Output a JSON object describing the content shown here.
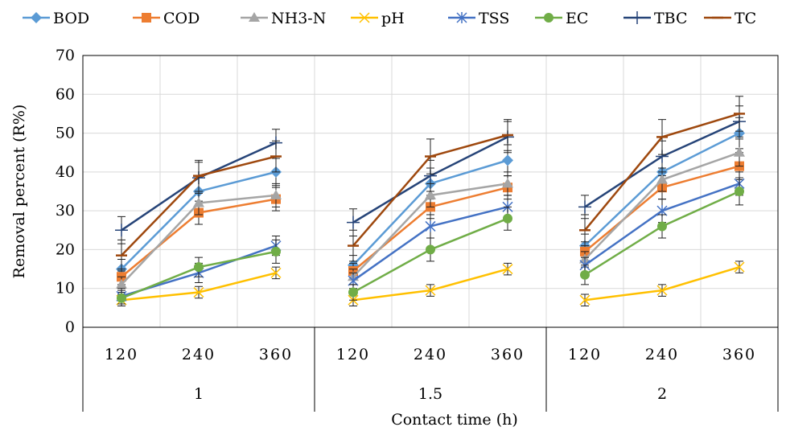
{
  "chart_data": {
    "type": "line",
    "xlabel": "Contact time (h)",
    "ylabel": "Removal  percent  (R%)",
    "ylim": [
      0,
      70
    ],
    "yticks": [
      0,
      10,
      20,
      30,
      40,
      50,
      60,
      70
    ],
    "grid": true,
    "legend_position": "top",
    "groups": [
      {
        "label": "1",
        "categories": [
          "120",
          "240",
          "360"
        ]
      },
      {
        "label": "1.5",
        "categories": [
          "120",
          "240",
          "360"
        ]
      },
      {
        "label": "2",
        "categories": [
          "120",
          "240",
          "360"
        ]
      }
    ],
    "series": [
      {
        "name": "BOD",
        "color": "#5b9bd5",
        "marker": "diamond",
        "values": [
          [
            15,
            35,
            40
          ],
          [
            16,
            37,
            43
          ],
          [
            21,
            40,
            50
          ]
        ],
        "errors": [
          [
            2.5,
            3.5,
            3.5
          ],
          [
            2.5,
            4,
            4
          ],
          [
            3,
            4,
            4
          ]
        ]
      },
      {
        "name": "COD",
        "color": "#ed7d31",
        "marker": "square",
        "values": [
          [
            13,
            29.5,
            33
          ],
          [
            14.5,
            31,
            36
          ],
          [
            19.5,
            36,
            41.5
          ]
        ],
        "errors": [
          [
            2,
            3,
            3
          ],
          [
            2,
            3,
            3
          ],
          [
            2.5,
            3,
            3.5
          ]
        ]
      },
      {
        "name": "NH3-N",
        "color": "#a5a5a5",
        "marker": "triangle",
        "values": [
          [
            11,
            32,
            34
          ],
          [
            13,
            34,
            37
          ],
          [
            17.5,
            38,
            45
          ]
        ],
        "errors": [
          [
            2,
            3,
            3
          ],
          [
            2,
            3,
            3
          ],
          [
            2,
            3,
            3.5
          ]
        ]
      },
      {
        "name": "pH",
        "color": "#ffc000",
        "marker": "x",
        "values": [
          [
            7,
            9,
            14
          ],
          [
            7,
            9.5,
            15
          ],
          [
            7,
            9.5,
            15.5
          ]
        ],
        "errors": [
          [
            1.5,
            1.5,
            1.5
          ],
          [
            1.5,
            1.5,
            1.5
          ],
          [
            1.5,
            1.5,
            1.5
          ]
        ]
      },
      {
        "name": "TSS",
        "color": "#4472c4",
        "marker": "star",
        "values": [
          [
            8,
            14,
            21
          ],
          [
            12,
            26,
            31
          ],
          [
            16,
            30,
            37
          ]
        ],
        "errors": [
          [
            2,
            2.5,
            2.5
          ],
          [
            2,
            3,
            3
          ],
          [
            2,
            3,
            3
          ]
        ]
      },
      {
        "name": "EC",
        "color": "#70ad47",
        "marker": "circle",
        "values": [
          [
            7.5,
            15.5,
            19.5
          ],
          [
            9,
            20,
            28
          ],
          [
            13.5,
            26,
            35
          ]
        ],
        "errors": [
          [
            2,
            2.5,
            3
          ],
          [
            2,
            3,
            3
          ],
          [
            2.5,
            3,
            3.5
          ]
        ]
      },
      {
        "name": "TBC",
        "color": "#264478",
        "marker": "plus",
        "values": [
          [
            25,
            38.5,
            47.5
          ],
          [
            27,
            39,
            49
          ],
          [
            31,
            44,
            53
          ]
        ],
        "errors": [
          [
            3.5,
            4,
            3.5
          ],
          [
            3.5,
            4,
            4
          ],
          [
            3,
            4,
            4
          ]
        ]
      },
      {
        "name": "TC",
        "color": "#9e480e",
        "marker": "dash",
        "values": [
          [
            18.5,
            39,
            44
          ],
          [
            21,
            44,
            49.5
          ],
          [
            25,
            49,
            55
          ]
        ],
        "errors": [
          [
            4,
            4,
            4
          ],
          [
            4,
            4.5,
            4
          ],
          [
            4,
            4.5,
            4.5
          ]
        ]
      }
    ]
  }
}
